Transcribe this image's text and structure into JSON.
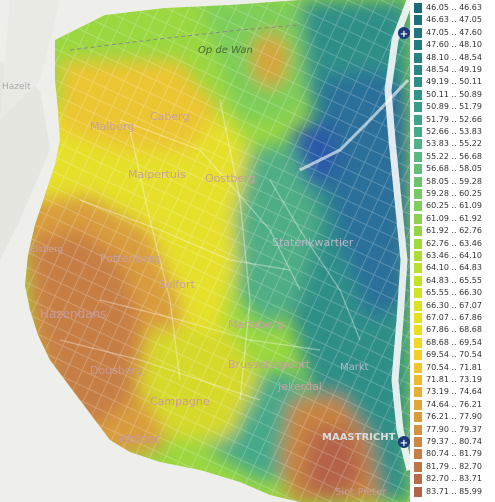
{
  "map": {
    "places": [
      {
        "name": "Op de Wan",
        "key": "opdewan"
      },
      {
        "name": "Malberg",
        "key": "malberg"
      },
      {
        "name": "Caberg",
        "key": "caberg"
      },
      {
        "name": "Malpertuis",
        "key": "malpertuis"
      },
      {
        "name": "Oostberg",
        "key": "oostberg"
      },
      {
        "name": "Pottenberg",
        "key": "pottenberg"
      },
      {
        "name": "Belfort",
        "key": "belfort"
      },
      {
        "name": "Statenkwartier",
        "key": "statenkwartier"
      },
      {
        "name": "Mariaberg",
        "key": "mariaberg"
      },
      {
        "name": "Hazendans",
        "key": "hazendans"
      },
      {
        "name": "Dousberg",
        "key": "dousberg"
      },
      {
        "name": "Brusselsepoort",
        "key": "brusselsepoort"
      },
      {
        "name": "Markt",
        "key": "markt"
      },
      {
        "name": "Campagne",
        "key": "campagne"
      },
      {
        "name": "Jekerdal",
        "key": "jekerdal"
      },
      {
        "name": "Wolder",
        "key": "wolder"
      },
      {
        "name": "MAASTRICHT",
        "key": "maastricht"
      },
      {
        "name": "Sint Pieter",
        "key": "stpieter"
      },
      {
        "name": "Hazelt",
        "key": "hazelt"
      },
      {
        "name": "Elsberg",
        "key": "elsberg"
      }
    ]
  },
  "legend": {
    "expand_icon": "plus-icon",
    "items": [
      {
        "label": "46.05 .. 46.63",
        "color": "#1e6a76"
      },
      {
        "label": "46.63 .. 47.05",
        "color": "#1f707a"
      },
      {
        "label": "47.05 .. 47.60",
        "color": "#21767d"
      },
      {
        "label": "47.60 .. 48.10",
        "color": "#237c80"
      },
      {
        "label": "48.10 .. 48.54",
        "color": "#268283"
      },
      {
        "label": "48.54 .. 49.19",
        "color": "#298886"
      },
      {
        "label": "49.19 .. 50.11",
        "color": "#2d8e88"
      },
      {
        "label": "50.11 .. 50.89",
        "color": "#32958a"
      },
      {
        "label": "50.89 .. 51.79",
        "color": "#389c8b"
      },
      {
        "label": "51.79 .. 52.66",
        "color": "#3fa38b"
      },
      {
        "label": "52.66 .. 53.83",
        "color": "#47aa8a"
      },
      {
        "label": "53.83 .. 55.22",
        "color": "#50b187"
      },
      {
        "label": "55.22 .. 56.68",
        "color": "#5ab882"
      },
      {
        "label": "56.68 .. 58.05",
        "color": "#63be7a"
      },
      {
        "label": "58.05 .. 59.28",
        "color": "#6cc471"
      },
      {
        "label": "59.28 .. 60.25",
        "color": "#75c966"
      },
      {
        "label": "60.25 .. 61.09",
        "color": "#80ce5a"
      },
      {
        "label": "61.09 .. 61.92",
        "color": "#8ad24f"
      },
      {
        "label": "61.92 .. 62.76",
        "color": "#95d645"
      },
      {
        "label": "62.76 .. 63.46",
        "color": "#a1da3c"
      },
      {
        "label": "63.46 .. 64.10",
        "color": "#addd34"
      },
      {
        "label": "64.10 .. 64.83",
        "color": "#b9e02e"
      },
      {
        "label": "64.83 .. 65.55",
        "color": "#c5e229"
      },
      {
        "label": "65.55 .. 66.30",
        "color": "#d0e326"
      },
      {
        "label": "66.30 .. 67.07",
        "color": "#dbe324"
      },
      {
        "label": "67.07 .. 67.86",
        "color": "#e4e123"
      },
      {
        "label": "67.86 .. 68.68",
        "color": "#ecdd24"
      },
      {
        "label": "68.68 .. 69.54",
        "color": "#f2d726"
      },
      {
        "label": "69.54 .. 70.54",
        "color": "#f3cf29"
      },
      {
        "label": "70.54 .. 71.81",
        "color": "#f0c52d"
      },
      {
        "label": "71.81 .. 73.19",
        "color": "#ecbb31"
      },
      {
        "label": "73.19 .. 74.64",
        "color": "#e6b035"
      },
      {
        "label": "74.64 .. 76.21",
        "color": "#e0a639"
      },
      {
        "label": "76.21 .. 77.90",
        "color": "#d99c3d"
      },
      {
        "label": "77.90 .. 79.37",
        "color": "#d39240"
      },
      {
        "label": "79.37 .. 80.74",
        "color": "#cc8843"
      },
      {
        "label": "80.74 .. 81.79",
        "color": "#c67e45"
      },
      {
        "label": "81.79 .. 82.70",
        "color": "#c07547"
      },
      {
        "label": "82.70 .. 83.71",
        "color": "#ba6c48"
      },
      {
        "label": "83.71 .. 85.99",
        "color": "#b46349"
      }
    ]
  }
}
